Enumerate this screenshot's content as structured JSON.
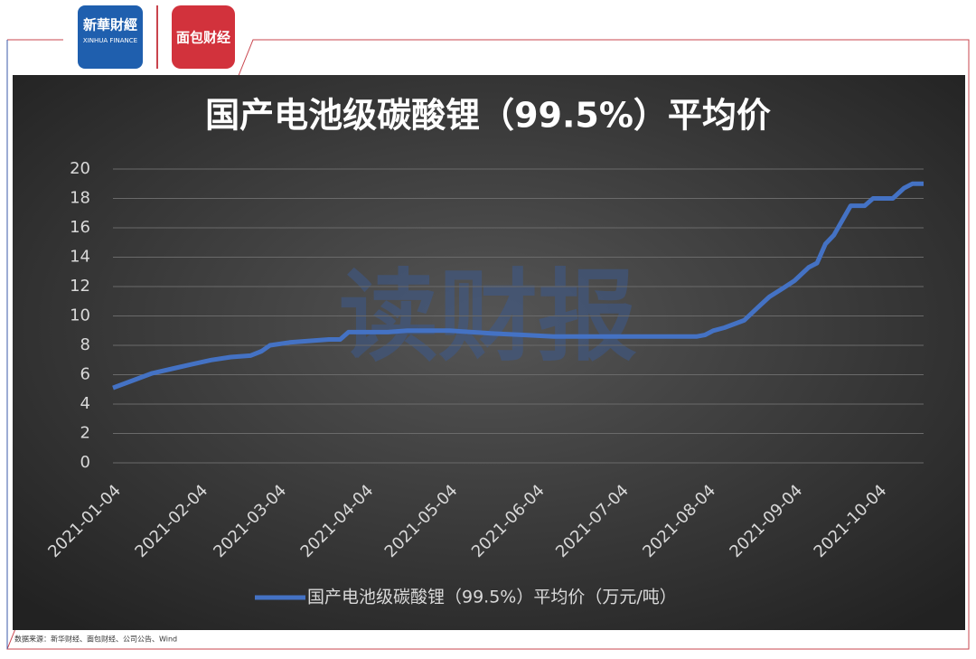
{
  "logos": {
    "left": "新華財經",
    "left_sub": "XINHUA FINANCE",
    "right": "面包财经"
  },
  "source": "数据来源：新华财经、面包财经、公司公告、Wind",
  "chart_data": {
    "type": "line",
    "title": "国产电池级碳酸锂（99.5%）平均价",
    "watermark": "读财报",
    "x": [
      "2021-01-04",
      "2021-01-11",
      "2021-01-18",
      "2021-01-25",
      "2021-02-01",
      "2021-02-08",
      "2021-02-15",
      "2021-02-22",
      "2021-02-26",
      "2021-03-01",
      "2021-03-08",
      "2021-03-15",
      "2021-03-22",
      "2021-03-26",
      "2021-03-29",
      "2021-04-12",
      "2021-04-19",
      "2021-05-04",
      "2021-05-12",
      "2021-05-20",
      "2021-05-31",
      "2021-06-10",
      "2021-07-31",
      "2021-08-03",
      "2021-08-06",
      "2021-08-10",
      "2021-08-17",
      "2021-08-22",
      "2021-08-26",
      "2021-08-31",
      "2021-09-04",
      "2021-09-09",
      "2021-09-12",
      "2021-09-15",
      "2021-09-18",
      "2021-09-24",
      "2021-09-29",
      "2021-10-02",
      "2021-10-09",
      "2021-10-13",
      "2021-10-16",
      "2021-10-20"
    ],
    "series": [
      {
        "name": "国产电池级碳酸锂（99.5%）平均价（万元/吨）",
        "color": "#4472c4",
        "values": [
          5.1,
          5.6,
          6.1,
          6.4,
          6.7,
          7.0,
          7.2,
          7.3,
          7.6,
          8.0,
          8.2,
          8.3,
          8.4,
          8.4,
          8.9,
          8.9,
          9.0,
          9.0,
          8.9,
          8.8,
          8.7,
          8.6,
          8.6,
          8.7,
          9.0,
          9.2,
          9.7,
          10.6,
          11.3,
          11.9,
          12.4,
          13.3,
          13.6,
          14.9,
          15.5,
          17.5,
          17.5,
          18.0,
          18.0,
          18.7,
          19.0,
          19.0
        ]
      }
    ],
    "xlim": [
      "2021-01-04",
      "2021-10-20"
    ],
    "xticks": [
      "2021-01-04",
      "2021-02-04",
      "2021-03-04",
      "2021-04-04",
      "2021-05-04",
      "2021-06-04",
      "2021-07-04",
      "2021-08-04",
      "2021-09-04",
      "2021-10-04"
    ],
    "ylim": [
      0,
      20
    ],
    "yticks": [
      0,
      2,
      4,
      6,
      8,
      10,
      12,
      14,
      16,
      18,
      20
    ],
    "grid": true,
    "legend": "bottom"
  }
}
